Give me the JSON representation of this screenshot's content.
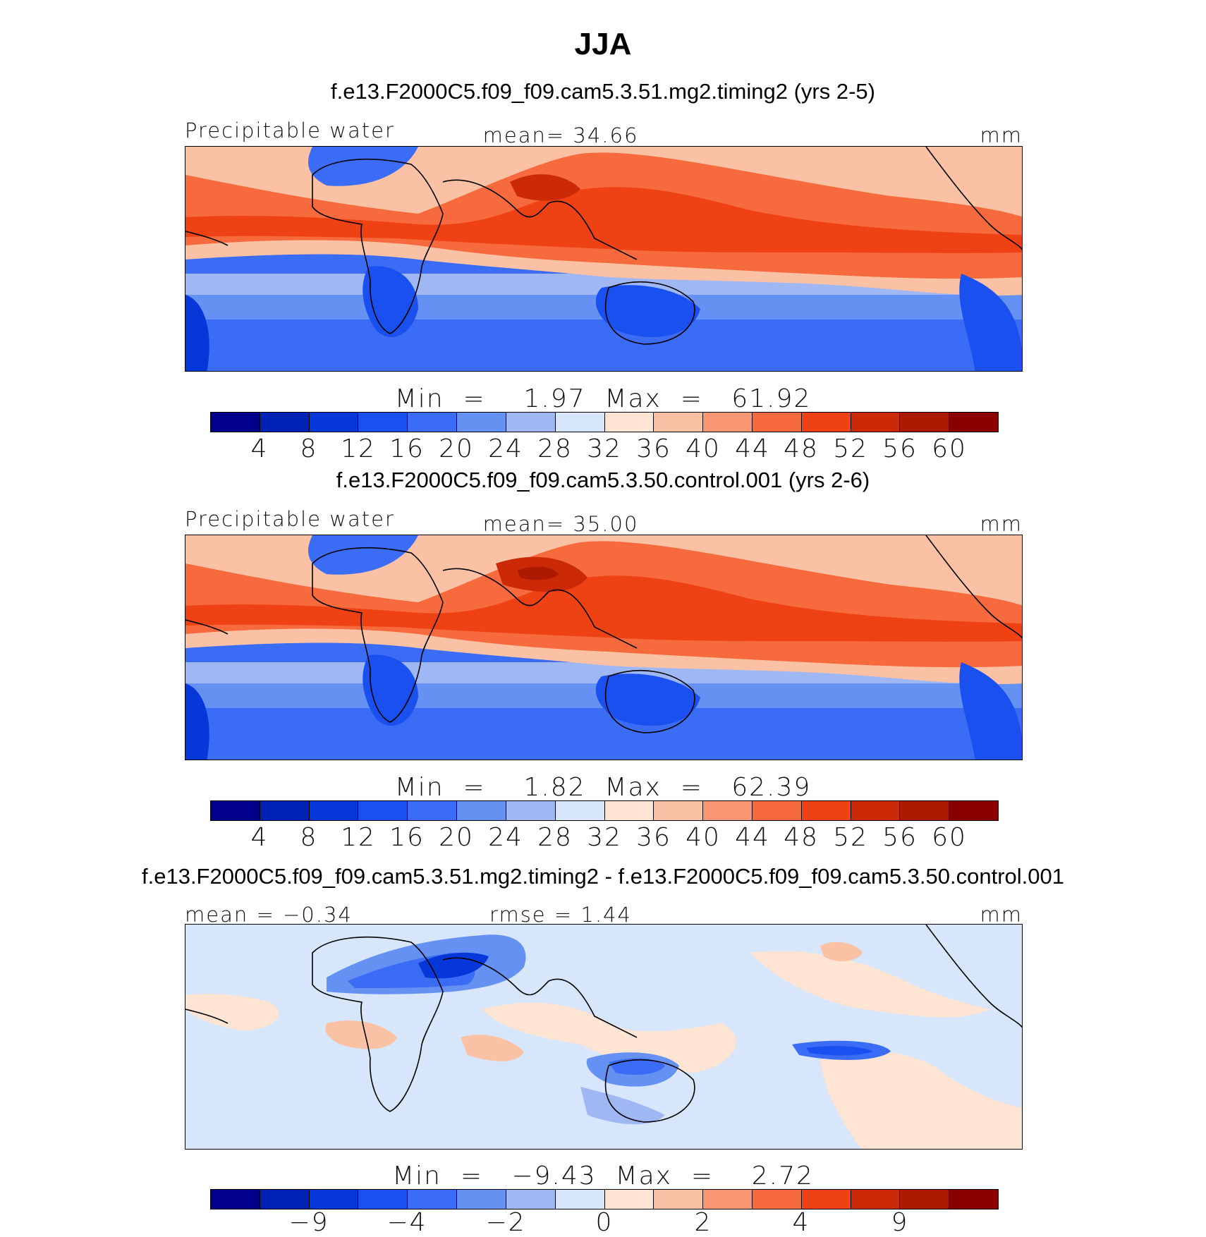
{
  "figure_title": "JJA",
  "panels": [
    {
      "case_title": "f.e13.F2000C5.f09_f09.cam5.3.51.mg2.timing2 (yrs 2-5)",
      "left_label": "Precipitable water",
      "center_label": "mean=   34.66",
      "units": "mm",
      "minmax": "Min  =    1.97  Max  =   61.92",
      "colorbar_labels": [
        "4",
        "8",
        "12",
        "16",
        "20",
        "24",
        "28",
        "32",
        "36",
        "40",
        "44",
        "48",
        "52",
        "56",
        "60"
      ]
    },
    {
      "case_title": "f.e13.F2000C5.f09_f09.cam5.3.50.control.001 (yrs 2-6)",
      "left_label": "Precipitable water",
      "center_label": "mean=   35.00",
      "units": "mm",
      "minmax": "Min  =    1.82  Max  =   62.39",
      "colorbar_labels": [
        "4",
        "8",
        "12",
        "16",
        "20",
        "24",
        "28",
        "32",
        "36",
        "40",
        "44",
        "48",
        "52",
        "56",
        "60"
      ]
    },
    {
      "case_title": "f.e13.F2000C5.f09_f09.cam5.3.51.mg2.timing2 - f.e13.F2000C5.f09_f09.cam5.3.50.control.001",
      "left_label": "mean  =   −0.34",
      "center_label": "rmse  =    1.44",
      "units": "mm",
      "minmax": "Min  =   −9.43  Max  =    2.72",
      "colorbar_labels": [
        "−9",
        "",
        "−4",
        "",
        "−2",
        "",
        "0",
        "",
        "2",
        "",
        "4",
        "",
        "9"
      ]
    }
  ],
  "colormap": [
    "#00008b",
    "#0022b4",
    "#0637d8",
    "#1a50f0",
    "#3a6cf5",
    "#6592f2",
    "#9fb8f4",
    "#d7e6fb",
    "#fde4d3",
    "#fbc1a5",
    "#f99673",
    "#f66a3e",
    "#ee4214",
    "#cc2a06",
    "#ad1a02",
    "#8a0000"
  ],
  "legend_colors": [
    "#00008b",
    "#0022b4",
    "#0637d8",
    "#1a50f0",
    "#3a6cf5",
    "#6592f2",
    "#9fb8f4",
    "#d7e6fb",
    "#fde4d3",
    "#fbc1a5",
    "#f99673",
    "#f66a3e",
    "#ee4214",
    "#cc2a06",
    "#ad1a02",
    "#8a0000"
  ],
  "diff_legend_colors": [
    "#00008b",
    "#0022b4",
    "#0637d8",
    "#1a50f0",
    "#3a6cf5",
    "#6592f2",
    "#9fb8f4",
    "#d7e6fb",
    "#fde4d3",
    "#fbc1a5",
    "#f99673",
    "#f66a3e",
    "#ee4214",
    "#cc2a06",
    "#ad1a02",
    "#8a0000"
  ]
}
